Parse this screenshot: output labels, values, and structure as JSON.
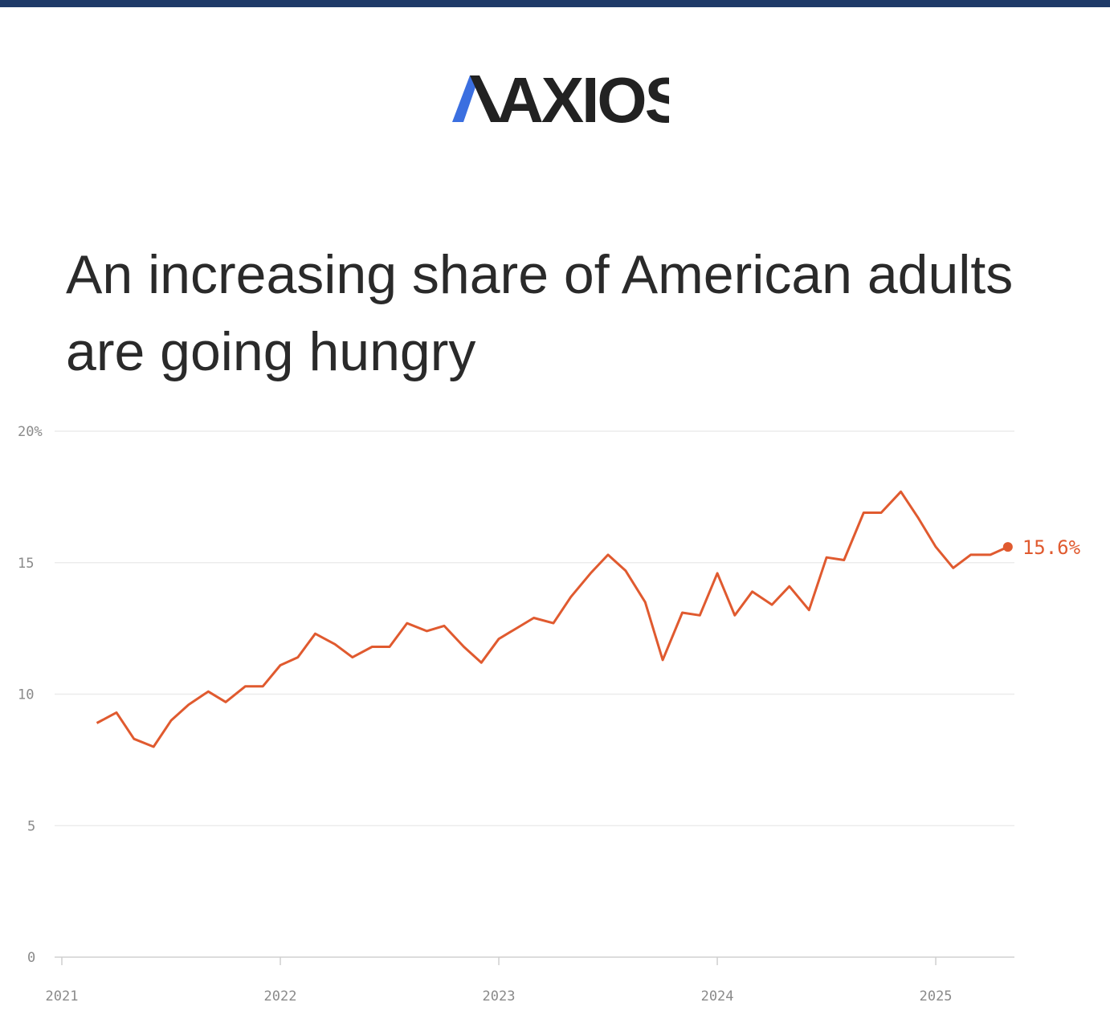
{
  "brand": {
    "logo_text": "AXIOS",
    "accent_color": "#3b6fe0",
    "bar_color": "#1f3a68"
  },
  "chart_data": {
    "type": "line",
    "title": "An increasing share of American adults are going hungry",
    "xlabel": "",
    "ylabel": "",
    "ylim": [
      0,
      20
    ],
    "xlim": [
      2021,
      2025.36
    ],
    "grid": true,
    "y_ticks": [
      {
        "value": 0,
        "label": "0"
      },
      {
        "value": 5,
        "label": "5"
      },
      {
        "value": 10,
        "label": "10"
      },
      {
        "value": 15,
        "label": "15"
      },
      {
        "value": 20,
        "label": "20%"
      }
    ],
    "x_ticks": [
      {
        "value": 2021,
        "label": "2021"
      },
      {
        "value": 2022,
        "label": "2022"
      },
      {
        "value": 2023,
        "label": "2023"
      },
      {
        "value": 2024,
        "label": "2024"
      },
      {
        "value": 2025,
        "label": "2025"
      }
    ],
    "line_color": "#e05a2f",
    "end_label": "15.6%",
    "series": [
      {
        "x": [
          2021.16,
          2021.25,
          2021.33,
          2021.42,
          2021.5,
          2021.58,
          2021.67,
          2021.75,
          2021.84,
          2021.92,
          2022.0,
          2022.08,
          2022.16,
          2022.25,
          2022.33,
          2022.42,
          2022.5,
          2022.58,
          2022.67,
          2022.75,
          2022.84,
          2022.92,
          2023.0,
          2023.08,
          2023.16,
          2023.25,
          2023.33,
          2023.42,
          2023.5,
          2023.58,
          2023.67,
          2023.75,
          2023.84,
          2023.92,
          2024.0,
          2024.08,
          2024.16,
          2024.25,
          2024.33,
          2024.42,
          2024.5,
          2024.58,
          2024.67,
          2024.75,
          2024.84,
          2024.92,
          2025.0,
          2025.08,
          2025.16,
          2025.25,
          2025.33
        ],
        "values": [
          8.9,
          9.3,
          8.3,
          8.0,
          9.0,
          9.6,
          10.1,
          9.7,
          10.3,
          10.3,
          11.1,
          11.4,
          12.3,
          11.9,
          11.4,
          11.8,
          11.8,
          12.7,
          12.4,
          12.6,
          11.8,
          11.2,
          12.1,
          12.5,
          12.9,
          12.7,
          13.7,
          14.6,
          15.3,
          14.7,
          13.5,
          11.3,
          13.1,
          13.0,
          14.6,
          13.0,
          13.9,
          13.4,
          14.1,
          13.2,
          15.2,
          15.1,
          16.9,
          16.9,
          17.7,
          16.7,
          15.6,
          14.8,
          15.3,
          15.3,
          15.6
        ]
      }
    ]
  }
}
